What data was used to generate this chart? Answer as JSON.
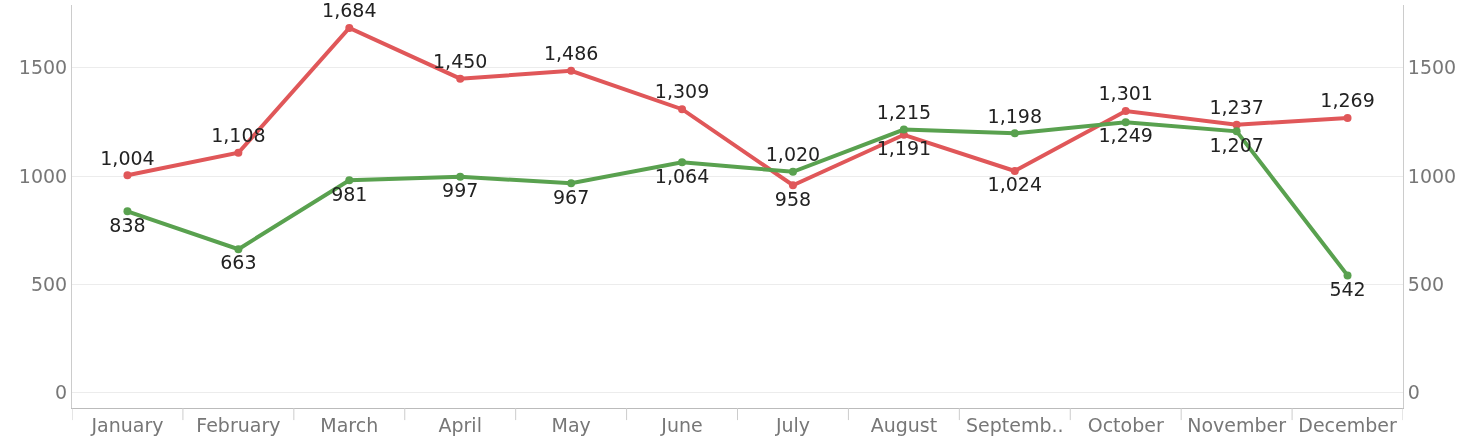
{
  "chart_data": {
    "type": "line",
    "categories": [
      "January",
      "February",
      "March",
      "April",
      "May",
      "June",
      "July",
      "August",
      "Septemb..",
      "October",
      "November",
      "December"
    ],
    "series": [
      {
        "color": "#e05759",
        "values": [
          1004,
          1108,
          1684,
          1450,
          1486,
          1309,
          958,
          1191,
          1024,
          1301,
          1237,
          1269
        ],
        "value_labels": [
          "1,004",
          "1,108",
          "1,684",
          "1,450",
          "1,486",
          "1,309",
          "958",
          "1,191",
          "1,024",
          "1,301",
          "1,237",
          "1,269"
        ]
      },
      {
        "color": "#59a14f",
        "values": [
          838,
          663,
          981,
          997,
          967,
          1064,
          1020,
          1215,
          1198,
          1249,
          1207,
          542
        ],
        "value_labels": [
          "838",
          "663",
          "981",
          "997",
          "967",
          "1,064",
          "1,020",
          "1,215",
          "1,198",
          "1,249",
          "1,207",
          "542"
        ]
      }
    ],
    "ylim": [
      -70,
      1790
    ],
    "yticks": [
      0,
      500,
      1000,
      1500
    ],
    "y2lim": [
      -70,
      1790
    ],
    "y2ticks": [
      0,
      500,
      1000,
      1500
    ],
    "grid": "y",
    "marker": "circle",
    "line_style": "solid"
  }
}
